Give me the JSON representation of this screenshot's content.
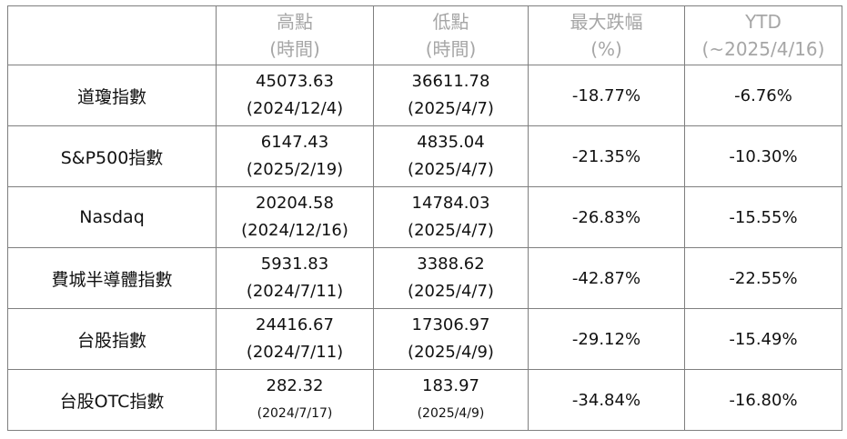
{
  "table": {
    "header": [
      [
        "高點",
        "(時間)"
      ],
      [
        "低點",
        "(時間)"
      ],
      [
        "最大跌幅",
        "(%)"
      ],
      [
        "YTD",
        "(~2025/4/16)"
      ]
    ],
    "rows": [
      {
        "name": "道瓊指數",
        "high": "45073.63",
        "high_date": "(2024/12/4)",
        "low": "36611.78",
        "low_date": "(2025/4/7)",
        "drawdown": "-18.77%",
        "ytd": "-6.76%"
      },
      {
        "name": "S&P500指數",
        "high": "6147.43",
        "high_date": "(2025/2/19)",
        "low": "4835.04",
        "low_date": "(2025/4/7)",
        "drawdown": "-21.35%",
        "ytd": "-10.30%"
      },
      {
        "name": "Nasdaq",
        "high": "20204.58",
        "high_date": "(2024/12/16)",
        "low": "14784.03",
        "low_date": "(2025/4/7)",
        "drawdown": "-26.83%",
        "ytd": "-15.55%"
      },
      {
        "name": "費城半導體指數",
        "high": "5931.83",
        "high_date": "(2024/7/11)",
        "low": "3388.62",
        "low_date": "(2025/4/7)",
        "drawdown": "-42.87%",
        "ytd": "-22.55%"
      },
      {
        "name": "台股指數",
        "high": "24416.67",
        "high_date": "(2024/7/11)",
        "low": "17306.97",
        "low_date": "(2025/4/9)",
        "drawdown": "-29.12%",
        "ytd": "-15.49%"
      },
      {
        "name": "台股OTC指數",
        "high": "282.32",
        "high_date": "(2024/7/17)",
        "low": "183.97",
        "low_date": "(2025/4/9)",
        "drawdown": "-34.84%",
        "ytd": "-16.80%"
      }
    ]
  }
}
